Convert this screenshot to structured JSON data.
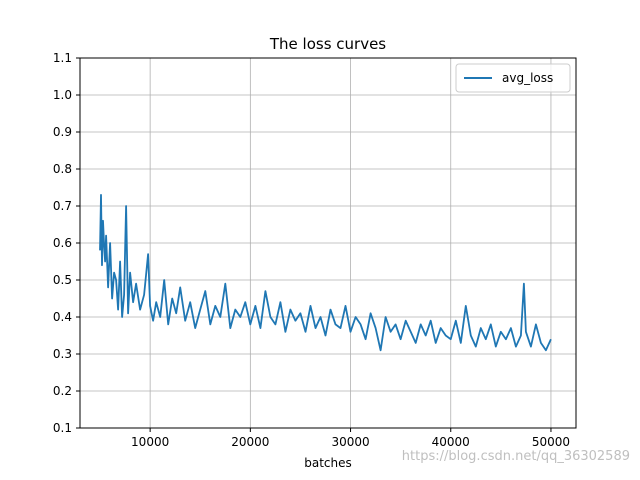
{
  "chart_data": {
    "type": "line",
    "title": "The loss curves",
    "xlabel": "batches",
    "ylabel": "",
    "xlim": [
      3000,
      52500
    ],
    "ylim": [
      0.1,
      1.1
    ],
    "xticks": [
      10000,
      20000,
      30000,
      40000,
      50000
    ],
    "yticks": [
      0.1,
      0.2,
      0.3,
      0.4,
      0.5,
      0.6,
      0.7,
      0.8,
      0.9,
      1.0,
      1.1
    ],
    "grid": true,
    "legend_position": "top-right",
    "series": [
      {
        "name": "avg_loss",
        "color": "#1f77b4",
        "x": [
          5000,
          5100,
          5200,
          5300,
          5400,
          5500,
          5600,
          5800,
          6000,
          6200,
          6400,
          6600,
          6800,
          7000,
          7200,
          7400,
          7600,
          7800,
          8000,
          8300,
          8600,
          9000,
          9400,
          9800,
          10000,
          10300,
          10600,
          11000,
          11400,
          11800,
          12200,
          12600,
          13000,
          13500,
          14000,
          14500,
          15000,
          15500,
          16000,
          16500,
          17000,
          17500,
          18000,
          18500,
          19000,
          19500,
          20000,
          20500,
          21000,
          21500,
          22000,
          22500,
          23000,
          23500,
          24000,
          24500,
          25000,
          25500,
          26000,
          26500,
          27000,
          27500,
          28000,
          28500,
          29000,
          29500,
          30000,
          30500,
          31000,
          31500,
          32000,
          32500,
          33000,
          33500,
          34000,
          34500,
          35000,
          35500,
          36000,
          36500,
          37000,
          37500,
          38000,
          38500,
          39000,
          39500,
          40000,
          40500,
          41000,
          41500,
          42000,
          42500,
          43000,
          43500,
          44000,
          44500,
          45000,
          45500,
          46000,
          46500,
          47000,
          47300,
          47500,
          48000,
          48500,
          49000,
          49500,
          50000
        ],
        "values": [
          0.58,
          0.73,
          0.54,
          0.66,
          0.6,
          0.55,
          0.62,
          0.48,
          0.6,
          0.45,
          0.52,
          0.5,
          0.42,
          0.55,
          0.4,
          0.46,
          0.7,
          0.41,
          0.52,
          0.44,
          0.49,
          0.42,
          0.46,
          0.57,
          0.43,
          0.39,
          0.44,
          0.4,
          0.5,
          0.38,
          0.45,
          0.41,
          0.48,
          0.39,
          0.44,
          0.37,
          0.42,
          0.47,
          0.38,
          0.43,
          0.4,
          0.49,
          0.37,
          0.42,
          0.4,
          0.44,
          0.38,
          0.43,
          0.37,
          0.47,
          0.4,
          0.38,
          0.44,
          0.36,
          0.42,
          0.39,
          0.41,
          0.36,
          0.43,
          0.37,
          0.4,
          0.35,
          0.42,
          0.38,
          0.37,
          0.43,
          0.36,
          0.4,
          0.38,
          0.34,
          0.41,
          0.37,
          0.31,
          0.4,
          0.36,
          0.38,
          0.34,
          0.39,
          0.36,
          0.33,
          0.38,
          0.35,
          0.39,
          0.33,
          0.37,
          0.35,
          0.34,
          0.39,
          0.33,
          0.43,
          0.35,
          0.32,
          0.37,
          0.34,
          0.38,
          0.32,
          0.36,
          0.34,
          0.37,
          0.32,
          0.35,
          0.49,
          0.36,
          0.32,
          0.38,
          0.33,
          0.31,
          0.34
        ]
      }
    ]
  },
  "watermark": "https://blog.csdn.net/qq_36302589"
}
